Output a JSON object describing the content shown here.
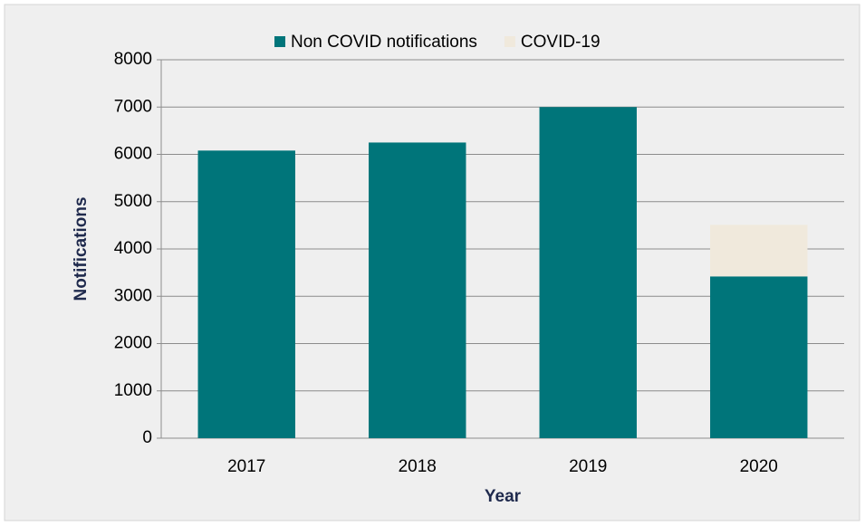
{
  "chart_data": {
    "type": "bar",
    "stacked": true,
    "categories": [
      "2017",
      "2018",
      "2019",
      "2020"
    ],
    "series": [
      {
        "name": "Non COVID notifications",
        "color": "#00757a",
        "values": [
          6080,
          6250,
          7000,
          3420
        ]
      },
      {
        "name": "COVID-19",
        "color": "#f0e9dc",
        "values": [
          0,
          0,
          0,
          1090
        ]
      }
    ],
    "x_label": "Year",
    "y_label": "Notifications",
    "ylim": [
      0,
      8000
    ],
    "yticks": [
      0,
      1000,
      2000,
      3000,
      4000,
      5000,
      6000,
      7000,
      8000
    ],
    "grid": true,
    "legend": "top"
  }
}
